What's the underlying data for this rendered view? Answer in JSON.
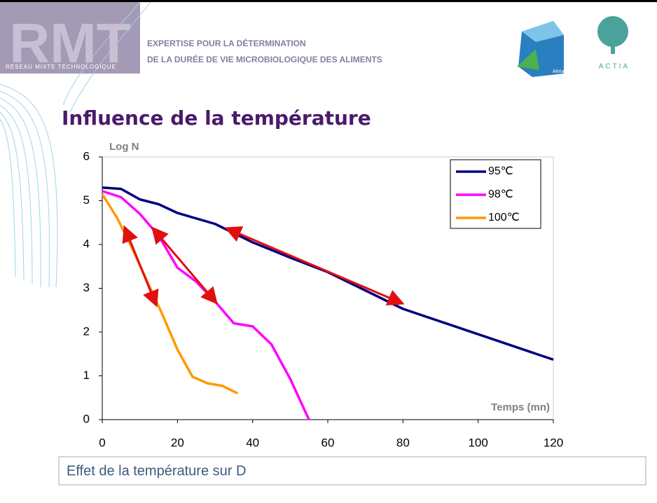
{
  "header": {
    "logo": "RMT",
    "logo_caption": "RÉSEAU MIXTE TECHNOLOGIQUE",
    "line1": "EXPERTISE POUR LA DÉTERMINATION",
    "line2": "DE LA DURÉE DE VIE MICROBIOLOGIQUE DES ALIMENTS",
    "logo2": "Aérial",
    "logo3": "ACTIA"
  },
  "title": "Influence de la température",
  "footer": "Effet de la température sur D",
  "chart_data": {
    "type": "line",
    "ylabel": "Log N",
    "xlabel": "Temps (mn)",
    "xlim": [
      0,
      120
    ],
    "xticks": [
      0,
      20,
      40,
      60,
      80,
      100,
      120
    ],
    "ylim": [
      0,
      6
    ],
    "yticks": [
      0,
      1,
      2,
      3,
      4,
      5,
      6
    ],
    "grid": false,
    "legend": "upper right",
    "series": [
      {
        "name": "95℃",
        "color": "#000080",
        "x": [
          0,
          5,
          10,
          15,
          20,
          30,
          40,
          50,
          60,
          70,
          80,
          120
        ],
        "values": [
          5.3,
          5.27,
          5.03,
          4.92,
          4.72,
          4.47,
          4.05,
          3.7,
          3.37,
          2.95,
          2.53,
          1.37
        ]
      },
      {
        "name": "98℃",
        "color": "#ff00ff",
        "x": [
          0,
          5,
          10,
          15,
          20,
          25,
          30,
          35,
          40,
          45,
          50,
          55
        ],
        "values": [
          5.22,
          5.08,
          4.7,
          4.2,
          3.47,
          3.15,
          2.7,
          2.2,
          2.13,
          1.72,
          0.93,
          0
        ]
      },
      {
        "name": "100℃",
        "color": "#ff9900",
        "x": [
          0,
          4,
          8,
          12,
          16,
          20,
          24,
          28,
          32,
          36
        ],
        "values": [
          5.15,
          4.6,
          3.9,
          3.15,
          2.4,
          1.6,
          0.98,
          0.83,
          0.77,
          0.6
        ]
      }
    ]
  }
}
